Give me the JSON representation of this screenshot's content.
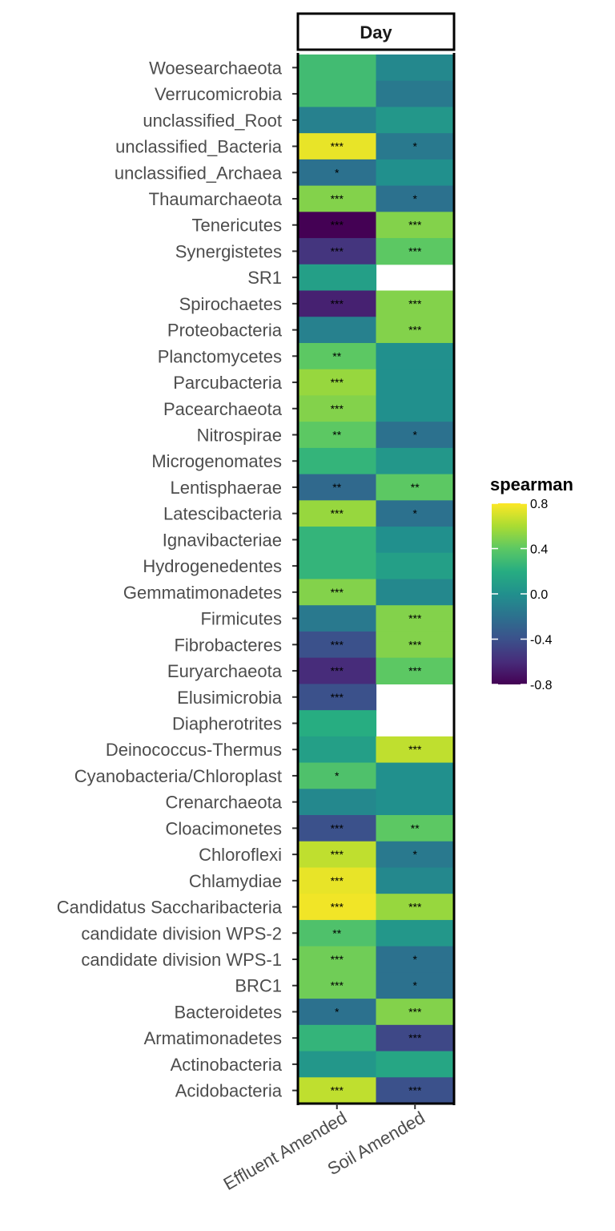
{
  "chart_data": {
    "type": "heatmap",
    "facet": "Day",
    "x": [
      "Effluent Amended",
      "Soil Amended"
    ],
    "y": [
      "Woesearchaeota",
      "Verrucomicrobia",
      "unclassified_Root",
      "unclassified_Bacteria",
      "unclassified_Archaea",
      "Thaumarchaeota",
      "Tenericutes",
      "Synergistetes",
      "SR1",
      "Spirochaetes",
      "Proteobacteria",
      "Planctomycetes",
      "Parcubacteria",
      "Pacearchaeota",
      "Nitrospirae",
      "Microgenomates",
      "Lentisphaerae",
      "Latescibacteria",
      "Ignavibacteriae",
      "Hydrogenedentes",
      "Gemmatimonadetes",
      "Firmicutes",
      "Fibrobacteres",
      "Euryarchaeota",
      "Elusimicrobia",
      "Diapherotrites",
      "Deinococcus-Thermus",
      "Cyanobacteria/Chloroplast",
      "Crenarchaeota",
      "Cloacimonetes",
      "Chloroflexi",
      "Chlamydiae",
      "Candidatus Saccharibacteria",
      "candidate division WPS-2",
      "candidate division WPS-1",
      "BRC1",
      "Bacteroidetes",
      "Armatimonadetes",
      "Actinobacteria",
      "Acidobacteria"
    ],
    "values": [
      [
        0.3,
        -0.05
      ],
      [
        0.3,
        -0.15
      ],
      [
        -0.1,
        0.05
      ],
      [
        0.75,
        -0.15
      ],
      [
        -0.2,
        0.0
      ],
      [
        0.5,
        -0.2
      ],
      [
        -0.85,
        0.5
      ],
      [
        -0.55,
        0.4
      ],
      [
        0.1,
        null
      ],
      [
        -0.65,
        0.5
      ],
      [
        -0.1,
        0.5
      ],
      [
        0.4,
        0.0
      ],
      [
        0.55,
        0.0
      ],
      [
        0.5,
        0.0
      ],
      [
        0.4,
        -0.2
      ],
      [
        0.25,
        0.05
      ],
      [
        -0.25,
        0.4
      ],
      [
        0.55,
        -0.2
      ],
      [
        0.25,
        0.0
      ],
      [
        0.25,
        0.1
      ],
      [
        0.5,
        -0.05
      ],
      [
        -0.15,
        0.5
      ],
      [
        -0.4,
        0.5
      ],
      [
        -0.6,
        0.4
      ],
      [
        -0.4,
        null
      ],
      [
        0.2,
        null
      ],
      [
        0.1,
        0.65
      ],
      [
        0.35,
        0.0
      ],
      [
        -0.05,
        0.0
      ],
      [
        -0.4,
        0.4
      ],
      [
        0.65,
        -0.15
      ],
      [
        0.75,
        -0.05
      ],
      [
        0.77,
        0.55
      ],
      [
        0.35,
        0.05
      ],
      [
        0.45,
        -0.2
      ],
      [
        0.45,
        -0.2
      ],
      [
        -0.2,
        0.5
      ],
      [
        0.25,
        -0.45
      ],
      [
        0.05,
        0.15
      ],
      [
        0.65,
        -0.4
      ]
    ],
    "significance": [
      [
        "",
        ""
      ],
      [
        "",
        ""
      ],
      [
        "",
        ""
      ],
      [
        "***",
        "*"
      ],
      [
        "*",
        ""
      ],
      [
        "***",
        "*"
      ],
      [
        "***",
        "***"
      ],
      [
        "***",
        "***"
      ],
      [
        "",
        ""
      ],
      [
        "***",
        "***"
      ],
      [
        "",
        "***"
      ],
      [
        "**",
        ""
      ],
      [
        "***",
        ""
      ],
      [
        "***",
        ""
      ],
      [
        "**",
        "*"
      ],
      [
        "",
        ""
      ],
      [
        "**",
        "**"
      ],
      [
        "***",
        "*"
      ],
      [
        "",
        ""
      ],
      [
        "",
        ""
      ],
      [
        "***",
        ""
      ],
      [
        "",
        "***"
      ],
      [
        "***",
        "***"
      ],
      [
        "***",
        "***"
      ],
      [
        "***",
        ""
      ],
      [
        "",
        ""
      ],
      [
        "",
        "***"
      ],
      [
        "*",
        ""
      ],
      [
        "",
        ""
      ],
      [
        "***",
        "**"
      ],
      [
        "***",
        "*"
      ],
      [
        "***",
        ""
      ],
      [
        "***",
        "***"
      ],
      [
        "**",
        ""
      ],
      [
        "***",
        "*"
      ],
      [
        "***",
        "*"
      ],
      [
        "*",
        "***"
      ],
      [
        "",
        "***"
      ],
      [
        "",
        ""
      ],
      [
        "***",
        "***"
      ]
    ],
    "legend": {
      "title": "spearman",
      "ticks": [
        "0.8",
        "0.4",
        "0.0",
        "-0.4",
        "-0.8"
      ],
      "range": [
        -0.8,
        0.8
      ],
      "palette": "viridis",
      "placement": "right"
    }
  }
}
